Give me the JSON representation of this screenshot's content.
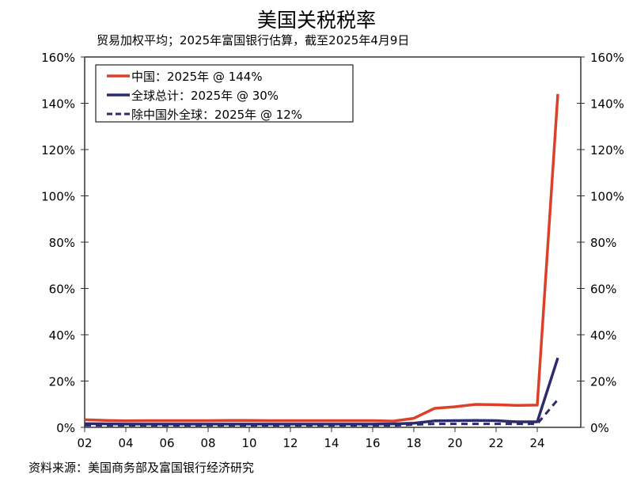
{
  "chart_data": {
    "type": "line",
    "title": "美国关税税率",
    "subtitle": "贸易加权平均；2025年富国银行估算，截至2025年4月9日",
    "source": "资料来源：美国商务部及富国银行经济研究",
    "x": [
      2002,
      2003,
      2004,
      2005,
      2006,
      2007,
      2008,
      2009,
      2010,
      2011,
      2012,
      2013,
      2014,
      2015,
      2016,
      2017,
      2018,
      2019,
      2020,
      2021,
      2022,
      2023,
      2024,
      2025
    ],
    "xticks": [
      "02",
      "04",
      "06",
      "08",
      "10",
      "12",
      "14",
      "16",
      "18",
      "20",
      "22",
      "24"
    ],
    "yticks": [
      "0%",
      "20%",
      "40%",
      "60%",
      "80%",
      "100%",
      "120%",
      "140%",
      "160%"
    ],
    "ylim": [
      0,
      160
    ],
    "secondary_y": true,
    "legend_position": "top-left",
    "series": [
      {
        "name": "中国：2025年 @ 144%",
        "color": "#d9412b",
        "style": "solid",
        "values": [
          3.3,
          3.0,
          2.8,
          2.9,
          2.9,
          2.9,
          2.9,
          3.0,
          3.0,
          2.9,
          2.9,
          2.9,
          2.9,
          2.9,
          2.9,
          2.7,
          3.9,
          8.2,
          8.9,
          9.9,
          9.8,
          9.5,
          9.6,
          144
        ]
      },
      {
        "name": "全球总计：2025年 @ 30%",
        "color": "#2e2a6e",
        "style": "solid",
        "values": [
          1.6,
          1.5,
          1.4,
          1.4,
          1.4,
          1.4,
          1.4,
          1.4,
          1.4,
          1.4,
          1.4,
          1.4,
          1.4,
          1.4,
          1.4,
          1.5,
          1.8,
          2.8,
          2.9,
          3.0,
          2.9,
          2.4,
          2.4,
          30
        ]
      },
      {
        "name": "除中国外全球：2025年 @ 12%",
        "color": "#2e2a6e",
        "style": "dashed",
        "values": [
          0.9,
          0.8,
          0.8,
          0.8,
          0.8,
          0.8,
          0.8,
          0.8,
          0.8,
          0.8,
          0.8,
          0.8,
          0.8,
          0.8,
          0.8,
          0.8,
          1.2,
          1.5,
          1.5,
          1.5,
          1.5,
          1.5,
          1.5,
          12
        ]
      }
    ]
  }
}
